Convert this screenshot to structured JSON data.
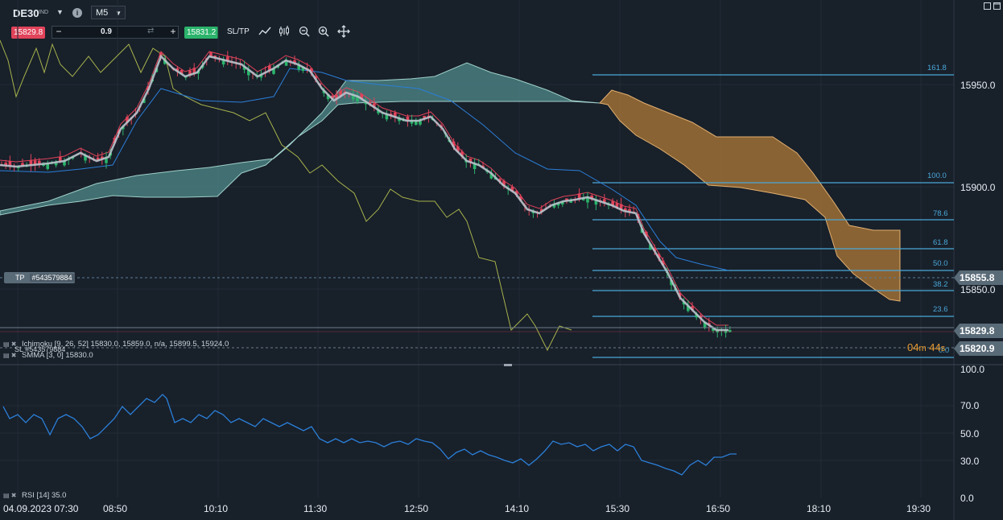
{
  "toolbar": {
    "symbol": "DE30",
    "symbol_type": "IND",
    "timeframe": "M5",
    "sell_price": "15829.8",
    "buy_price": "15831.2",
    "volume": "0.9",
    "sltp_label": "SL/TP",
    "icons": [
      "chart-type-icon",
      "indicators-icon",
      "zoom-out-icon",
      "zoom-in-icon",
      "move-icon"
    ]
  },
  "window": {
    "icons": [
      "minimize-icon",
      "maximize-icon"
    ]
  },
  "chart": {
    "price_axis": [
      "15950.0",
      "15900.0",
      "15850.0"
    ],
    "rsi_axis": [
      "100.0",
      "70.0",
      "50.0",
      "30.0",
      "0.0"
    ],
    "time_axis": [
      "04.09.2023 07:30",
      "08:50",
      "10:10",
      "11:30",
      "12:50",
      "14:10",
      "15:30",
      "16:50",
      "18:10",
      "19:30"
    ],
    "fib_levels": [
      "161.8",
      "100.0",
      "78.6",
      "61.8",
      "50.0",
      "38.2",
      "23.6",
      "0.0"
    ],
    "tp_label": "TP",
    "tp_order": "#543579884",
    "tp_price": "15855.8",
    "current_price": "15829.8",
    "sl_label": "SL",
    "sl_order": "#543579884",
    "sl_price": "15820.9",
    "countdown_min": "04",
    "countdown_m": "m",
    "countdown_sec": "44",
    "countdown_s": "s",
    "ichimoku_label": "Ichimoku [9, 26, 52] 15830.0, 15859.0, n/a, 15899.5, 15924.0",
    "smma_label": "SMMA [3, 0] 15830.0",
    "rsi_label": "RSI [14] 35.0",
    "colors": {
      "up": "#2bb36b",
      "down": "#e0435a",
      "tenkan": "#e0435a",
      "kijun": "#2b7fd8",
      "chikou": "#a6b24b",
      "cloud_bull": "#4f8a8b",
      "cloud_bear": "#b07a38",
      "smma": "#b9c4cc",
      "fib": "#4aa8d8",
      "rsi": "#2b7fd8"
    }
  }
}
